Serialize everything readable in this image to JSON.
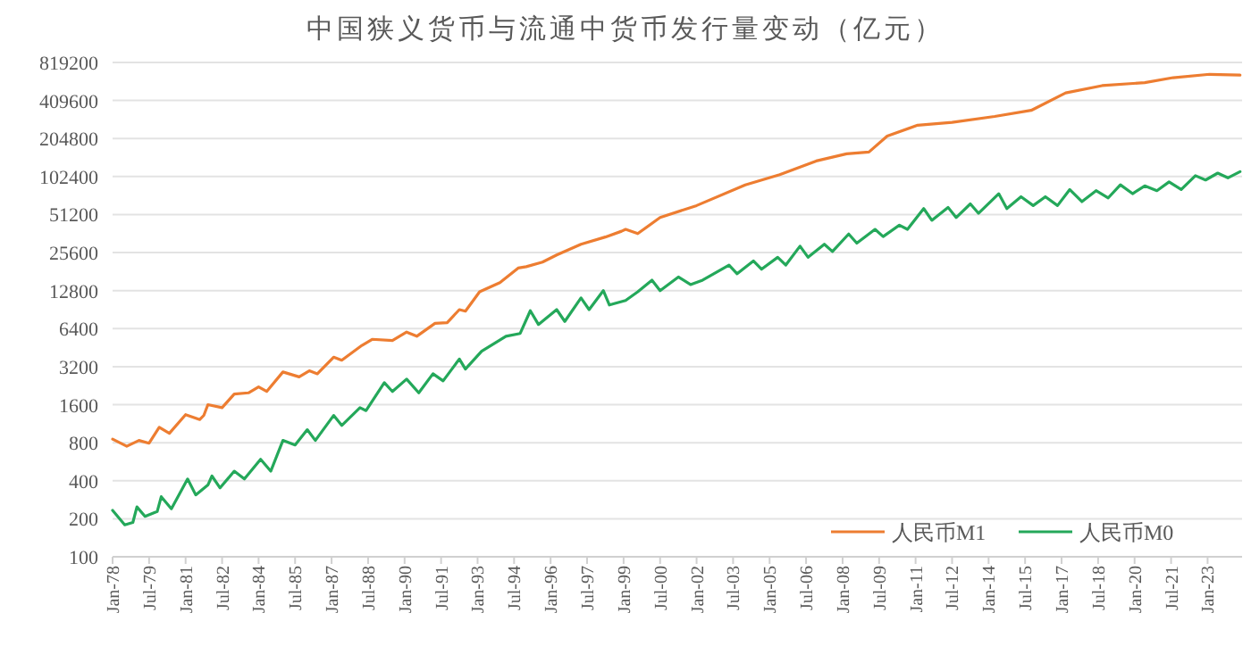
{
  "chart_data": {
    "type": "line",
    "title": "中国狭义货币与流通中货币发行量变动（亿元）",
    "log": "y",
    "grid": "y",
    "legend": "bottom right",
    "xlim": [
      "1978-01",
      "2024-06"
    ],
    "xticks": [
      {
        "value": "1978-01",
        "label": "Jan-78"
      },
      {
        "value": "1979-07",
        "label": "Jul-79"
      },
      {
        "value": "1981-01",
        "label": "Jan-81"
      },
      {
        "value": "1982-07",
        "label": "Jul-82"
      },
      {
        "value": "1984-01",
        "label": "Jan-84"
      },
      {
        "value": "1985-07",
        "label": "Jul-85"
      },
      {
        "value": "1987-01",
        "label": "Jan-87"
      },
      {
        "value": "1988-07",
        "label": "Jul-88"
      },
      {
        "value": "1990-01",
        "label": "Jan-90"
      },
      {
        "value": "1991-07",
        "label": "Jul-91"
      },
      {
        "value": "1993-01",
        "label": "Jan-93"
      },
      {
        "value": "1994-07",
        "label": "Jul-94"
      },
      {
        "value": "1996-01",
        "label": "Jan-96"
      },
      {
        "value": "1997-07",
        "label": "Jul-97"
      },
      {
        "value": "1999-01",
        "label": "Jan-99"
      },
      {
        "value": "2000-07",
        "label": "Jul-00"
      },
      {
        "value": "2002-01",
        "label": "Jan-02"
      },
      {
        "value": "2003-07",
        "label": "Jul-03"
      },
      {
        "value": "2005-01",
        "label": "Jan-05"
      },
      {
        "value": "2006-07",
        "label": "Jul-06"
      },
      {
        "value": "2008-01",
        "label": "Jan-08"
      },
      {
        "value": "2009-07",
        "label": "Jul-09"
      },
      {
        "value": "2011-01",
        "label": "Jan-11"
      },
      {
        "value": "2012-07",
        "label": "Jul-12"
      },
      {
        "value": "2014-01",
        "label": "Jan-14"
      },
      {
        "value": "2015-07",
        "label": "Jul-15"
      },
      {
        "value": "2017-01",
        "label": "Jan-17"
      },
      {
        "value": "2018-07",
        "label": "Jul-18"
      },
      {
        "value": "2020-01",
        "label": "Jan-20"
      },
      {
        "value": "2021-07",
        "label": "Jul-21"
      },
      {
        "value": "2023-01",
        "label": "Jan-23"
      }
    ],
    "ylim": [
      100,
      819200
    ],
    "yticks": [
      100,
      200,
      400,
      800,
      1600,
      3200,
      6400,
      12800,
      25600,
      51200,
      102400,
      204800,
      409600,
      819200
    ],
    "series": [
      {
        "name": "人民币M1",
        "color": "#ed7d31",
        "x": [
          "1978-01",
          "1978-08",
          "1979-02",
          "1979-07",
          "1979-12",
          "1980-05",
          "1981-01",
          "1981-08",
          "1981-10",
          "1981-12",
          "1982-07",
          "1983-01",
          "1983-08",
          "1984-01",
          "1984-05",
          "1985-01",
          "1985-09",
          "1986-02",
          "1986-06",
          "1987-02",
          "1987-06",
          "1988-04",
          "1988-09",
          "1989-07",
          "1990-02",
          "1990-07",
          "1991-04",
          "1991-10",
          "1992-04",
          "1992-07",
          "1993-02",
          "1993-12",
          "1994-09",
          "1995-01",
          "1995-09",
          "1996-04",
          "1997-04",
          "1998-04",
          "1998-12",
          "1999-02",
          "1999-08",
          "2000-07",
          "2002-01",
          "2004-01",
          "2005-06",
          "2006-12",
          "2008-03",
          "2009-02",
          "2009-11",
          "2011-02",
          "2012-07",
          "2014-04",
          "2015-10",
          "2017-03",
          "2018-09",
          "2020-06",
          "2021-08",
          "2023-02",
          "2024-05"
        ],
        "values": [
          854,
          750,
          834,
          793,
          1060,
          950,
          1334,
          1220,
          1317,
          1600,
          1515,
          1943,
          1985,
          2215,
          2036,
          2905,
          2657,
          2965,
          2810,
          3805,
          3600,
          4720,
          5270,
          5160,
          6010,
          5570,
          7050,
          7140,
          9050,
          8800,
          12540,
          14800,
          19300,
          19800,
          21500,
          24500,
          29800,
          34000,
          37800,
          39100,
          36200,
          48500,
          60300,
          88000,
          106000,
          136000,
          155000,
          160000,
          214000,
          261000,
          275000,
          306000,
          342000,
          470000,
          537000,
          567000,
          621000,
          660000,
          651000
        ]
      },
      {
        "name": "人民币M0",
        "color": "#24a85a",
        "x": [
          "1978-01",
          "1978-07",
          "1978-11",
          "1979-01",
          "1979-05",
          "1979-11",
          "1980-01",
          "1980-06",
          "1981-02",
          "1981-06",
          "1981-12",
          "1982-02",
          "1982-06",
          "1983-01",
          "1983-06",
          "1984-02",
          "1984-07",
          "1985-01",
          "1985-07",
          "1986-01",
          "1986-05",
          "1987-02",
          "1987-06",
          "1988-03",
          "1988-06",
          "1989-03",
          "1989-07",
          "1990-02",
          "1990-08",
          "1991-03",
          "1991-08",
          "1992-04",
          "1992-07",
          "1993-03",
          "1994-03",
          "1994-10",
          "1995-03",
          "1995-07",
          "1996-04",
          "1996-08",
          "1997-04",
          "1997-08",
          "1998-03",
          "1998-06",
          "1999-02",
          "1999-08",
          "2000-03",
          "2000-07",
          "2001-04",
          "2001-10",
          "2002-04",
          "2003-05",
          "2003-09",
          "2004-05",
          "2004-09",
          "2005-05",
          "2005-09",
          "2006-04",
          "2006-08",
          "2007-04",
          "2007-08",
          "2008-04",
          "2008-08",
          "2009-05",
          "2009-09",
          "2010-05",
          "2010-09",
          "2011-05",
          "2011-09",
          "2012-05",
          "2012-09",
          "2013-04",
          "2013-08",
          "2014-06",
          "2014-10",
          "2015-05",
          "2015-11",
          "2016-05",
          "2016-11",
          "2017-05",
          "2017-11",
          "2018-06",
          "2018-12",
          "2019-06",
          "2019-12",
          "2020-06",
          "2020-12",
          "2021-06",
          "2021-12",
          "2022-07",
          "2022-12",
          "2023-06",
          "2023-11",
          "2024-05"
        ],
        "values": [
          233,
          179,
          187,
          248,
          209,
          228,
          299,
          240,
          413,
          309,
          370,
          436,
          351,
          476,
          413,
          591,
          476,
          834,
          767,
          1014,
          834,
          1315,
          1095,
          1515,
          1435,
          2390,
          2036,
          2550,
          1985,
          2810,
          2470,
          3680,
          3060,
          4240,
          5570,
          5860,
          8870,
          6900,
          9050,
          7300,
          11200,
          9050,
          12800,
          9850,
          10700,
          12540,
          15500,
          12800,
          16400,
          14300,
          15500,
          20400,
          17400,
          22000,
          18900,
          23500,
          20400,
          28800,
          23500,
          29800,
          26100,
          35900,
          30400,
          39100,
          34300,
          42200,
          39100,
          57100,
          46100,
          58400,
          48500,
          62200,
          52400,
          74900,
          57100,
          70900,
          60300,
          70900,
          60300,
          80800,
          64800,
          79100,
          69400,
          88000,
          74900,
          86300,
          79100,
          92900,
          80800,
          104000,
          96100,
          109000,
          100000,
          112000
        ]
      }
    ]
  }
}
